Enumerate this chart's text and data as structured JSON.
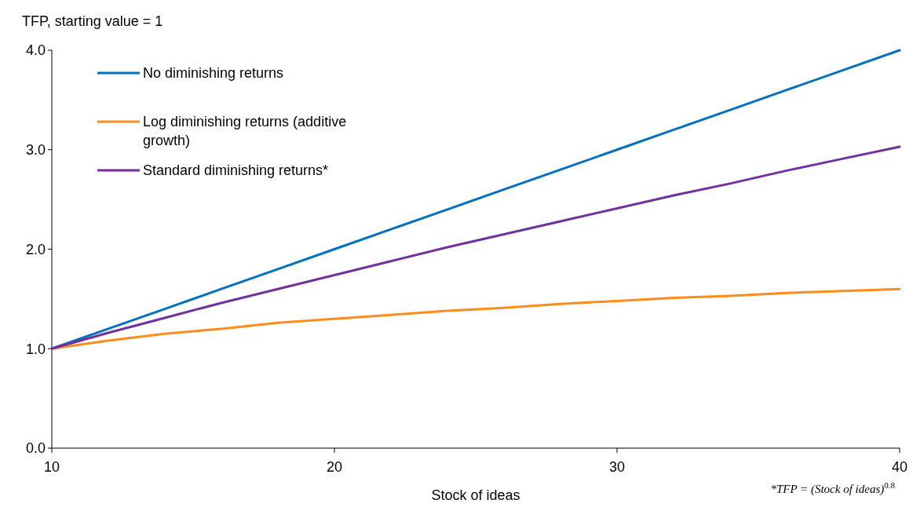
{
  "chart_data": {
    "type": "line",
    "ylabel": "TFP, starting value = 1",
    "xlabel": "Stock of ideas",
    "x": [
      10,
      12,
      14,
      16,
      18,
      20,
      22,
      24,
      26,
      28,
      30,
      32,
      34,
      36,
      38,
      40
    ],
    "xlim": [
      10,
      40
    ],
    "xticks": [
      10,
      20,
      30,
      40
    ],
    "ylim": [
      0,
      4
    ],
    "yticks": [
      {
        "value": 0,
        "label": "0.0"
      },
      {
        "value": 1,
        "label": "1.0"
      },
      {
        "value": 2,
        "label": "2.0"
      },
      {
        "value": 3,
        "label": "3.0"
      },
      {
        "value": 4,
        "label": "4.0"
      }
    ],
    "series": [
      {
        "name": "No diminishing returns",
        "color": "#0070c0",
        "values": [
          1.0,
          1.2,
          1.4,
          1.6,
          1.8,
          2.0,
          2.2,
          2.4,
          2.6,
          2.8,
          3.0,
          3.2,
          3.4,
          3.6,
          3.8,
          4.0
        ]
      },
      {
        "name": "Log diminishing returns (additive growth)",
        "color": "#ff8c1a",
        "values": [
          1.0,
          1.08,
          1.15,
          1.2,
          1.26,
          1.3,
          1.34,
          1.38,
          1.41,
          1.45,
          1.48,
          1.51,
          1.53,
          1.56,
          1.58,
          1.6
        ]
      },
      {
        "name": "Standard diminishing returns*",
        "color": "#7030a0",
        "values": [
          1.0,
          1.16,
          1.31,
          1.46,
          1.6,
          1.74,
          1.88,
          2.02,
          2.15,
          2.28,
          2.41,
          2.54,
          2.66,
          2.79,
          2.91,
          3.03
        ]
      }
    ],
    "legend": "top left",
    "grid": false,
    "marker": "none",
    "line_style": "solid",
    "annotations": [
      "*TFP = (Stock of ideas)$^{0.8}$"
    ]
  }
}
